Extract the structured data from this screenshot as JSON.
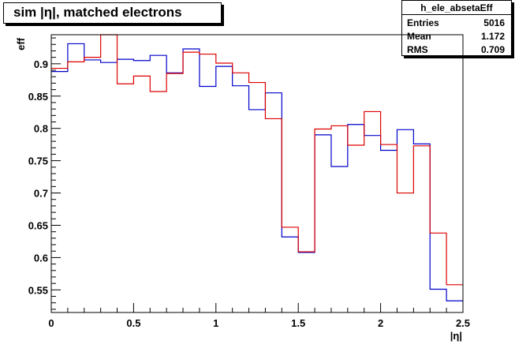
{
  "title": "sim |η|, matched electrons",
  "stats": {
    "name": "h_ele_absetaEff",
    "rows": [
      {
        "label": "Entries",
        "value": "5016"
      },
      {
        "label": "Mean",
        "value": "1.172"
      },
      {
        "label": "RMS",
        "value": "0.709"
      }
    ]
  },
  "chart_data": {
    "type": "line",
    "subtype": "step-histogram",
    "xlabel": "|η|",
    "ylabel": "eff",
    "xlim": [
      0,
      2.5
    ],
    "ylim": [
      0.515,
      0.945
    ],
    "x_ticks": [
      0,
      0.5,
      1,
      1.5,
      2,
      2.5
    ],
    "x_tick_labels": [
      "0",
      "0.5",
      "1",
      "1.5",
      "2",
      "2.5"
    ],
    "y_ticks": [
      0.55,
      0.6,
      0.65,
      0.7,
      0.75,
      0.8,
      0.85,
      0.9
    ],
    "y_tick_labels": [
      "0.55",
      "0.6",
      "0.65",
      "0.7",
      "0.75",
      "0.8",
      "0.85",
      "0.9"
    ],
    "bin_edges": [
      0,
      0.1,
      0.2,
      0.3,
      0.4,
      0.5,
      0.6,
      0.7,
      0.8,
      0.9,
      1.0,
      1.1,
      1.2,
      1.3,
      1.4,
      1.5,
      1.6,
      1.7,
      1.8,
      1.9,
      2.0,
      2.1,
      2.2,
      2.3,
      2.4,
      2.5
    ],
    "grid": false,
    "series": [
      {
        "color": "#0000cc",
        "values": [
          0.888,
          0.931,
          0.906,
          0.902,
          0.907,
          0.905,
          0.913,
          0.886,
          0.923,
          0.865,
          0.896,
          0.866,
          0.829,
          0.855,
          0.632,
          0.608,
          0.79,
          0.741,
          0.806,
          0.789,
          0.766,
          0.798,
          0.776,
          0.551,
          0.533
        ]
      },
      {
        "color": "#dd0000",
        "values": [
          0.893,
          0.903,
          0.91,
          0.945,
          0.869,
          0.881,
          0.857,
          0.885,
          0.918,
          0.915,
          0.901,
          0.886,
          0.871,
          0.815,
          0.647,
          0.609,
          0.799,
          0.804,
          0.774,
          0.826,
          0.775,
          0.7,
          0.773,
          0.638,
          0.558
        ]
      }
    ]
  }
}
